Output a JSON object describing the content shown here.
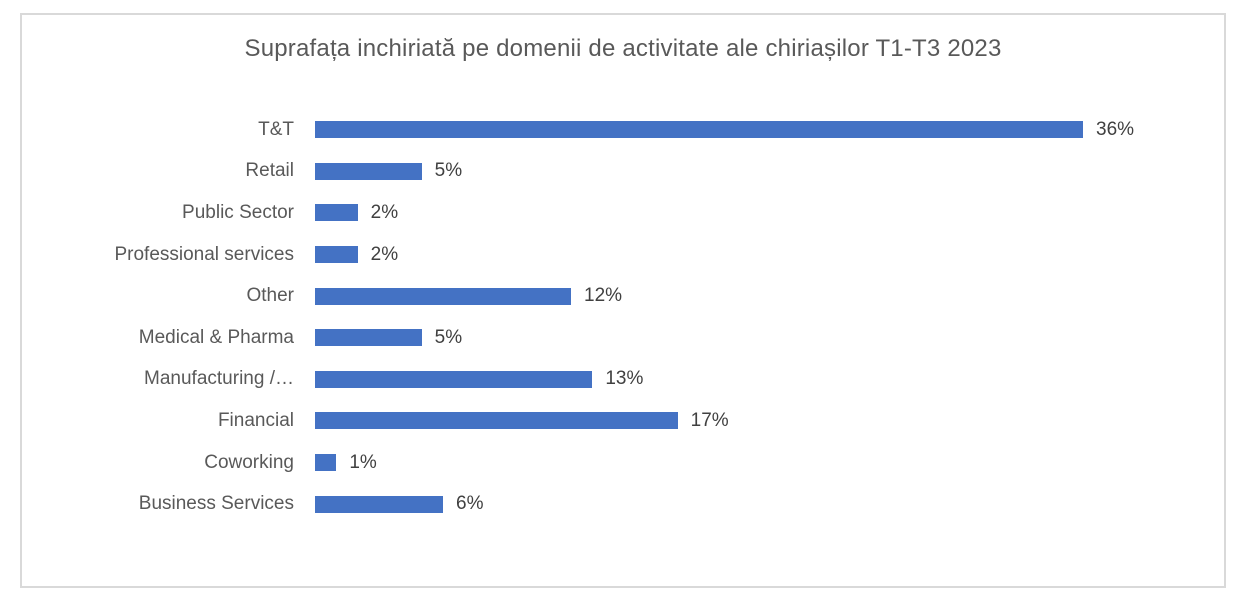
{
  "chart_data": {
    "type": "bar",
    "orientation": "horizontal",
    "title": "Suprafața inchiriată pe domenii de activitate ale chiriașilor T1-T3 2023",
    "categories": [
      "T&T",
      "Retail",
      "Public Sector",
      "Professional services",
      "Other",
      "Medical & Pharma",
      "Manufacturing /…",
      "Financial",
      "Coworking",
      "Business Services"
    ],
    "values": [
      36,
      5,
      2,
      2,
      12,
      5,
      13,
      17,
      1,
      6
    ],
    "value_labels": [
      "36%",
      "5%",
      "2%",
      "2%",
      "12%",
      "5%",
      "13%",
      "17%",
      "1%",
      "6%"
    ],
    "unit": "%",
    "xlim": [
      0,
      36
    ],
    "grid": false,
    "legend": false,
    "data_labels": "outside-end"
  },
  "colors": {
    "bar": "#4472C4",
    "title_text": "#595959",
    "category_text": "#595959",
    "value_text": "#404040",
    "frame_border": "#D9D9D9",
    "background": "#FFFFFF"
  }
}
